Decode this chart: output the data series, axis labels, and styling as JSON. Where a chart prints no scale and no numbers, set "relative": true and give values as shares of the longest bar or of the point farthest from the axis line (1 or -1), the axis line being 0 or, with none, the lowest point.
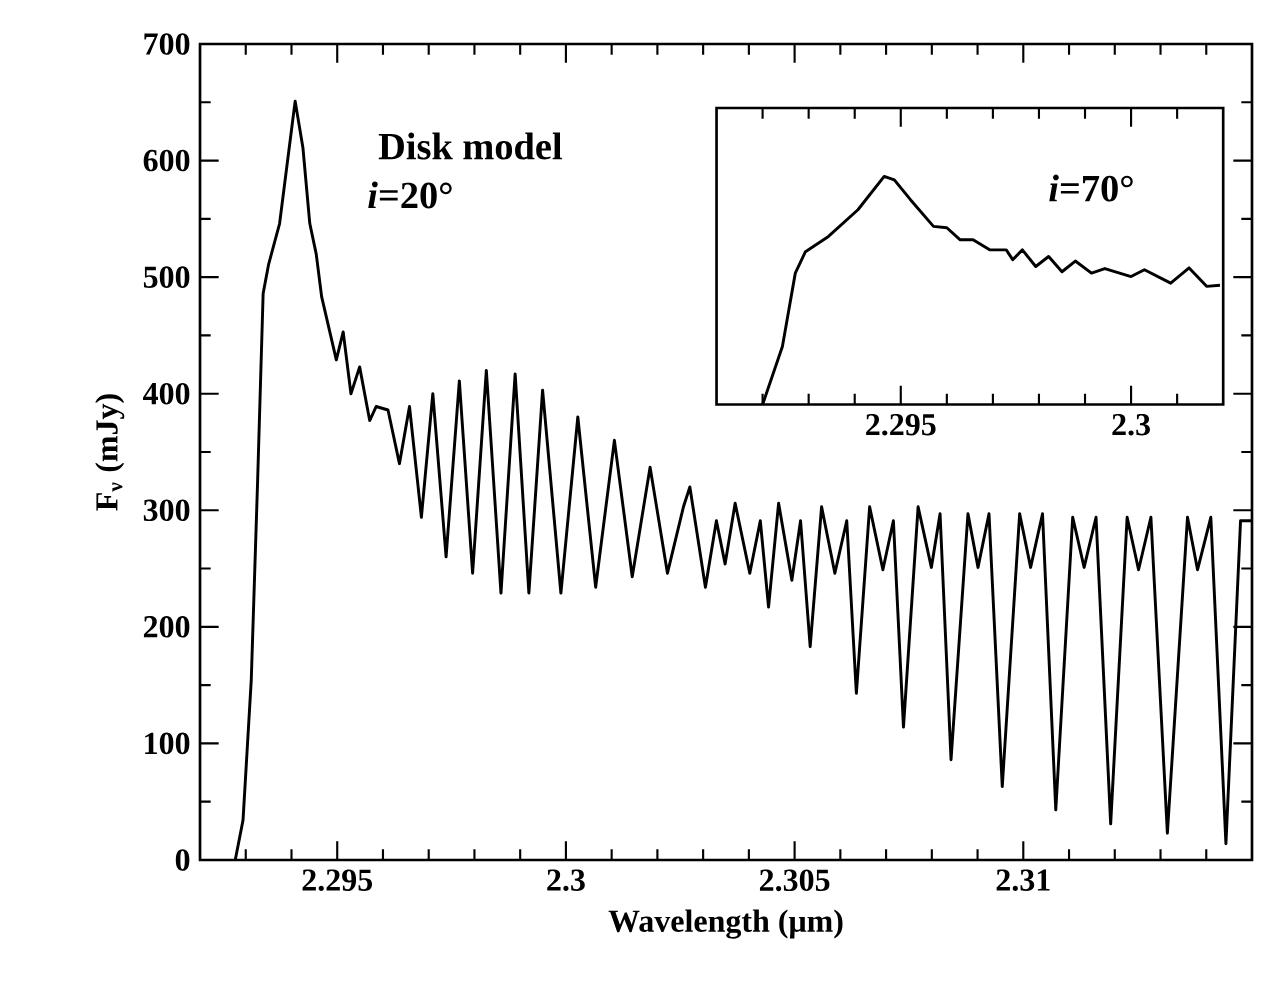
{
  "chart_data": [
    {
      "type": "line",
      "xlabel": "Wavelength (μm)",
      "ylabel": "F$_{ν}$ (mJy)",
      "color": "#000000",
      "annotations": [
        "Disk model",
        "*i*=20°"
      ],
      "xlim": [
        2.292,
        2.315
      ],
      "ylim": [
        0,
        700
      ],
      "xticks": [
        {
          "value": 2.293,
          "label": null
        },
        {
          "value": 2.294,
          "label": null
        },
        2.295,
        {
          "value": 2.296,
          "label": null
        },
        {
          "value": 2.297,
          "label": null
        },
        {
          "value": 2.298,
          "label": null
        },
        {
          "value": 2.299,
          "label": null
        },
        2.3,
        {
          "value": 2.301,
          "label": null
        },
        {
          "value": 2.302,
          "label": null
        },
        {
          "value": 2.303,
          "label": null
        },
        {
          "value": 2.304,
          "label": null
        },
        2.305,
        {
          "value": 2.306,
          "label": null
        },
        {
          "value": 2.307,
          "label": null
        },
        {
          "value": 2.308,
          "label": null
        },
        {
          "value": 2.309,
          "label": null
        },
        2.31,
        {
          "value": 2.311,
          "label": null
        },
        {
          "value": 2.312,
          "label": null
        },
        {
          "value": 2.313,
          "label": null
        },
        {
          "value": 2.314,
          "label": null
        }
      ],
      "yticks": [
        0,
        {
          "value": 50,
          "label": null
        },
        100,
        {
          "value": 150,
          "label": null
        },
        200,
        {
          "value": 250,
          "label": null
        },
        300,
        {
          "value": 350,
          "label": null
        },
        400,
        {
          "value": 450,
          "label": null
        },
        500,
        {
          "value": 550,
          "label": null
        },
        600,
        {
          "value": 650,
          "label": null
        },
        700
      ],
      "x": [
        2.29277,
        2.29294,
        2.29312,
        2.29326,
        2.29338,
        2.2935,
        2.29374,
        2.29408,
        2.29425,
        2.2944,
        2.29454,
        2.29466,
        2.29498,
        2.29513,
        2.2953,
        2.29549,
        2.29571,
        2.29585,
        2.29611,
        2.29636,
        2.29658,
        2.29684,
        2.29709,
        2.29738,
        2.29767,
        2.29796,
        2.29826,
        2.29858,
        2.29889,
        2.29919,
        2.29949,
        2.29989,
        2.30026,
        2.30065,
        2.30106,
        2.30145,
        2.30184,
        2.30222,
        2.30257,
        2.30271,
        2.30305,
        2.30329,
        2.30348,
        2.3037,
        2.30402,
        2.30425,
        2.30443,
        2.30465,
        2.30494,
        2.30513,
        2.30534,
        2.30559,
        2.30588,
        2.30614,
        2.30635,
        2.30664,
        2.30693,
        2.30716,
        2.30738,
        2.3077,
        2.30799,
        2.30818,
        2.30842,
        2.30879,
        2.30901,
        2.30925,
        2.30954,
        2.30992,
        2.31016,
        2.31042,
        2.31071,
        2.31108,
        2.31133,
        2.31159,
        2.31191,
        2.31227,
        2.31252,
        2.31279,
        2.31315,
        2.31359,
        2.31381,
        2.3141,
        2.31443,
        2.31475,
        2.31498
      ],
      "values": [
        0,
        34,
        154,
        326,
        486,
        511,
        546,
        651,
        611,
        546,
        520,
        483,
        429,
        453,
        400,
        423,
        377,
        389,
        386,
        340,
        389,
        294,
        400,
        260,
        411,
        246,
        420,
        229,
        417,
        229,
        403,
        229,
        380,
        234,
        360,
        243,
        337,
        246,
        303,
        320,
        234,
        291,
        254,
        306,
        246,
        291,
        217,
        306,
        240,
        291,
        183,
        303,
        246,
        291,
        143,
        303,
        249,
        291,
        114,
        303,
        251,
        297,
        86,
        297,
        251,
        297,
        63,
        297,
        251,
        297,
        43,
        294,
        251,
        294,
        31,
        294,
        249,
        294,
        23,
        294,
        249,
        294,
        14,
        291,
        291
      ]
    },
    {
      "type": "line",
      "relative": true,
      "tick_labels": "x",
      "color": "#000000",
      "annotations": [
        "*i*=70°"
      ],
      "xlim": [
        2.291,
        2.302
      ],
      "xticks": [
        {
          "value": 2.292,
          "label": null
        },
        {
          "value": 2.293,
          "label": null
        },
        {
          "value": 2.294,
          "label": null
        },
        2.295,
        {
          "value": 2.296,
          "label": null
        },
        {
          "value": 2.297,
          "label": null
        },
        {
          "value": 2.298,
          "label": null
        },
        {
          "value": 2.299,
          "label": null
        },
        2.3,
        {
          "value": 2.301,
          "label": null
        }
      ],
      "x": [
        2.292,
        2.29243,
        2.29271,
        2.29293,
        2.29343,
        2.29407,
        2.29464,
        2.29486,
        2.29521,
        2.29571,
        2.296,
        2.29629,
        2.29657,
        2.29693,
        2.29729,
        2.29743,
        2.29764,
        2.29793,
        2.29821,
        2.2985,
        2.29879,
        2.29914,
        2.29943,
        2.3,
        2.30029,
        2.30086,
        2.30126,
        2.30164,
        2.30193
      ],
      "values": [
        0,
        0.254,
        0.576,
        0.67,
        0.737,
        0.854,
        1.0,
        0.985,
        0.898,
        0.781,
        0.775,
        0.722,
        0.722,
        0.678,
        0.678,
        0.635,
        0.678,
        0.605,
        0.649,
        0.582,
        0.629,
        0.576,
        0.596,
        0.561,
        0.591,
        0.532,
        0.599,
        0.518,
        0.523
      ]
    }
  ]
}
